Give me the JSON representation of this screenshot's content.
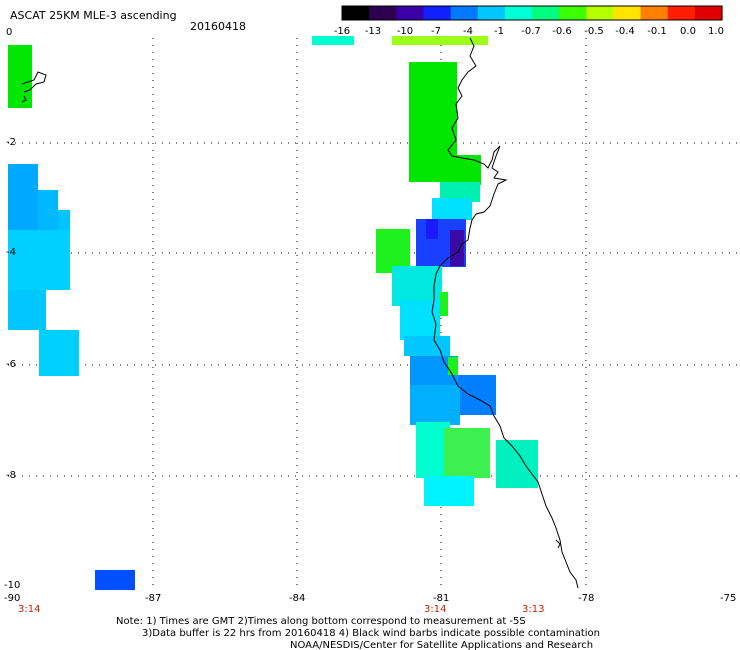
{
  "header": {
    "title": "ASCAT 25KM MLE-3 ascending",
    "date": "20160418"
  },
  "colorbar": {
    "ticks": [
      "-16",
      "-13",
      "-10",
      "-7",
      "-4",
      "-1",
      "-0.7",
      "-0.6",
      "-0.5",
      "-0.4",
      "-0.1",
      "0.0",
      "1.0"
    ],
    "colors": [
      "#000000",
      "#2c004f",
      "#3a00a6",
      "#1020ff",
      "#0078ff",
      "#00c8ff",
      "#00ffd4",
      "#00ff80",
      "#3cff00",
      "#b4ff00",
      "#ffe400",
      "#ff8000",
      "#ff1e00",
      "#e00000"
    ]
  },
  "axes": {
    "y_ticks": [
      "0",
      "-2",
      "-4",
      "-6",
      "-8",
      "-10"
    ],
    "x_ticks": [
      "-90",
      "-87",
      "-84",
      "-81",
      "-78",
      "-75"
    ],
    "time_labels": [
      "3:14",
      "3:14",
      "3:13"
    ]
  },
  "footer": {
    "line1": "Note: 1) Times are GMT 2)Times along bottom correspond to measurement at -5S",
    "line2": "3)Data buffer is 22 hrs from 20160418 4) Black wind barbs indicate possible contamination",
    "line3": "NOAA/NESDIS/Center for Satellite Applications and Research"
  },
  "colors": {
    "green": "#00e600",
    "lime": "#1ef01e",
    "aqua": "#00ffd0",
    "cyan": "#00d4ff",
    "sky": "#00b8ff",
    "blue": "#0080ff",
    "royal": "#0050ff",
    "deepblue": "#1a1aff",
    "indigo": "#3a0aa6",
    "yellowgreen": "#9cff1a"
  }
}
